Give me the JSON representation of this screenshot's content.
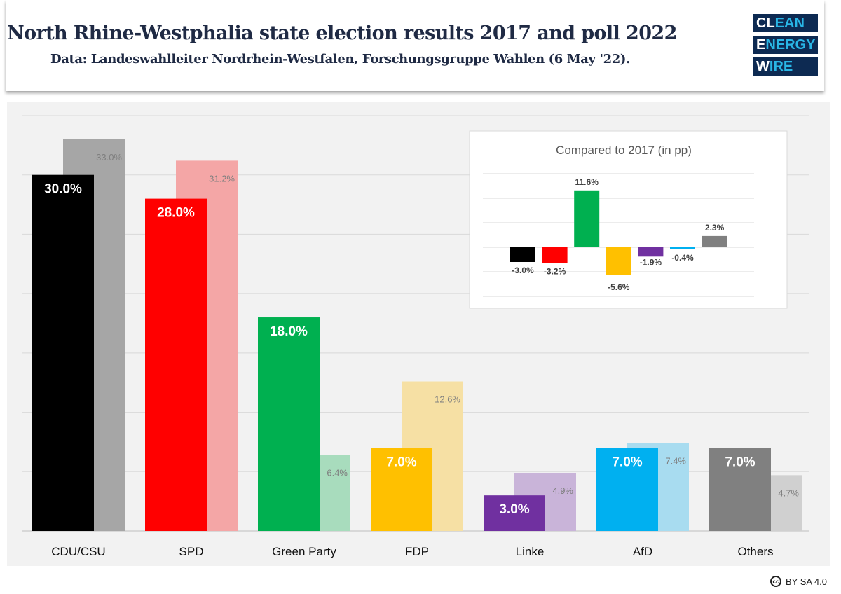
{
  "header": {
    "title": "North Rhine-Westphalia state election results 2017 and poll 2022",
    "subtitle": "Data: Landeswahlleiter Nordrhein-Westfalen, Forschungsgruppe Wahlen (6 May '22).",
    "logo": [
      "CLEAN",
      "ENERGY",
      "WIRE"
    ]
  },
  "footer": {
    "license": "BY SA 4.0",
    "icon": "creative-commons-icon"
  },
  "chart_data": [
    {
      "type": "bar",
      "categories": [
        "CDU/CSU",
        "SPD",
        "Green Party",
        "FDP",
        "Linke",
        "AfD",
        "Others"
      ],
      "series": [
        {
          "values": [
            30.0,
            28.0,
            18.0,
            7.0,
            3.0,
            7.0,
            7.0
          ],
          "labels": [
            "30.0%",
            "28.0%",
            "18.0%",
            "7.0%",
            "3.0%",
            "7.0%",
            "7.0%"
          ],
          "colors": [
            "#000000",
            "#ff0000",
            "#00b050",
            "#ffc000",
            "#7030a0",
            "#00b0f0",
            "#808080"
          ]
        },
        {
          "values": [
            33.0,
            31.2,
            6.4,
            12.6,
            4.9,
            7.4,
            4.7
          ],
          "labels": [
            "33.0%",
            "31.2%",
            "6.4%",
            "12.6%",
            "4.9%",
            "7.4%",
            "4.7%"
          ],
          "colors": [
            "#a6a6a6",
            "#f4a6a6",
            "#a8dcbd",
            "#f6e0a4",
            "#c9b4d9",
            "#a8dcf0",
            "#d0d0d0"
          ]
        }
      ],
      "ylim": [
        0,
        35
      ],
      "grid": true
    },
    {
      "type": "bar",
      "title": "Compared to 2017 (in pp)",
      "categories": [
        "CDU/CSU",
        "SPD",
        "Green Party",
        "FDP",
        "Linke",
        "AfD",
        "Others"
      ],
      "values": [
        -3.0,
        -3.2,
        11.6,
        -5.6,
        -1.9,
        -0.4,
        2.3
      ],
      "labels": [
        "-3.0%",
        "-3.2%",
        "11.6%",
        "-5.6%",
        "-1.9%",
        "-0.4%",
        "2.3%"
      ],
      "colors": [
        "#000000",
        "#ff0000",
        "#00b050",
        "#ffc000",
        "#7030a0",
        "#00b0f0",
        "#808080"
      ],
      "ylim": [
        -10,
        15
      ],
      "grid": true
    }
  ]
}
